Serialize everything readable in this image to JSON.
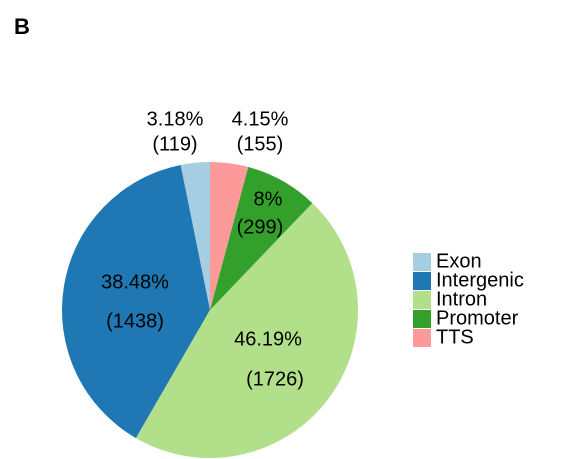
{
  "chart_data": {
    "type": "pie",
    "panel_label": "B",
    "categories": [
      "Exon",
      "Intergenic",
      "Intron",
      "Promoter",
      "TTS"
    ],
    "values": [
      3.18,
      38.48,
      46.19,
      8,
      4.15
    ],
    "value_labels": [
      "3.18%",
      "38.48%",
      "46.19%",
      "8%",
      "4.15%"
    ],
    "counts": [
      119,
      1438,
      1726,
      299,
      155
    ],
    "count_labels": [
      "(119)",
      "(1438)",
      "(1726)",
      "(299)",
      "(155)"
    ],
    "colors": [
      "#a6cee3",
      "#1f78b4",
      "#b2df8a",
      "#33a02c",
      "#fb9a99"
    ],
    "legend": "right"
  }
}
